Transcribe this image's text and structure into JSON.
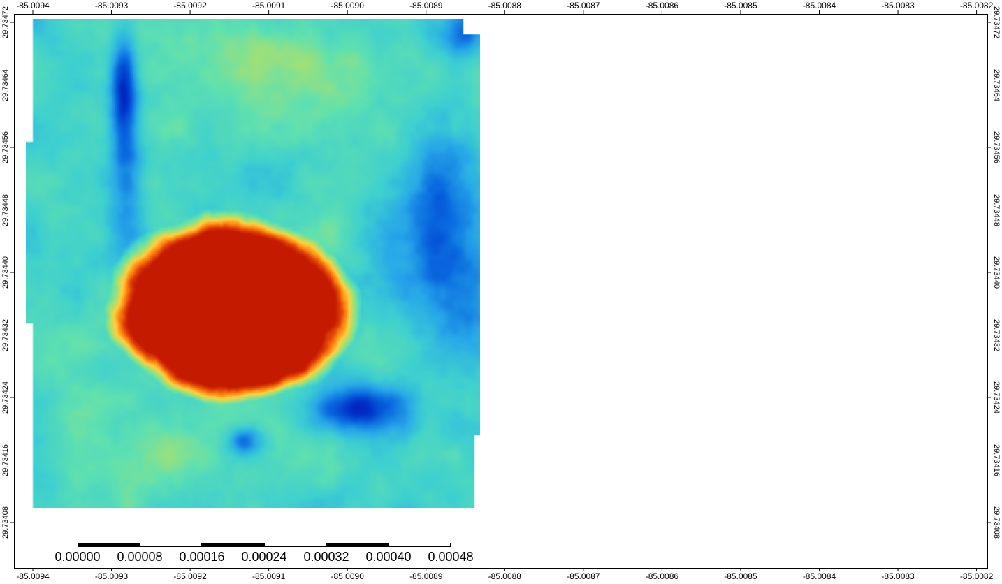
{
  "colors": {
    "frame": "#000000",
    "background": "#ffffff",
    "scalebar_dark": "#000000",
    "scalebar_light": "#ffffff"
  },
  "colormap": [
    "#00008b",
    "#0030c8",
    "#0a6be0",
    "#28a8e8",
    "#3ecfd0",
    "#5fe0b0",
    "#a8e070",
    "#ffd040",
    "#ff8a10",
    "#e04008",
    "#c41a00"
  ],
  "x_axis": {
    "labels": [
      "-85.0094",
      "-85.0093",
      "-85.0092",
      "-85.0091",
      "-85.0090",
      "-85.0089",
      "-85.0088",
      "-85.0087",
      "-85.0086",
      "-85.0085",
      "-85.0084",
      "-85.0083",
      "-85.0082"
    ]
  },
  "y_axis": {
    "labels": [
      "29.73472",
      "29.73464",
      "29.73456",
      "29.73448",
      "29.73440",
      "29.73432",
      "29.73424",
      "29.73416",
      "29.73408"
    ]
  },
  "scalebar": {
    "labels": [
      "0.00000",
      "0.00008",
      "0.00016",
      "0.00024",
      "0.00032",
      "0.00040",
      "0.00048"
    ]
  }
}
